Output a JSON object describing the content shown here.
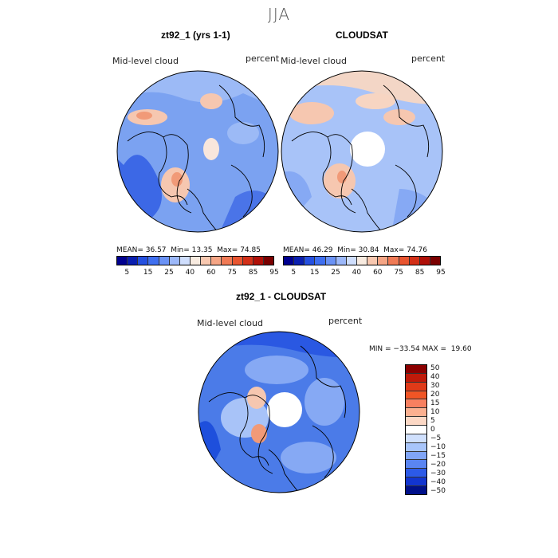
{
  "season": "JJA",
  "panel1": {
    "title": "zt92_1 (yrs 1-1)",
    "field": "Mid-level cloud",
    "units": "percent",
    "mean_label": "MEAN=",
    "mean": "36.57",
    "min_label": "Min=",
    "min": "13.35",
    "max_label": "Max=",
    "max": "74.85"
  },
  "panel2": {
    "title": "CLOUDSAT",
    "field": "Mid-level cloud",
    "units": "percent",
    "mean_label": "MEAN=",
    "mean": "46.29",
    "min_label": "Min=",
    "min": "30.84",
    "max_label": "Max=",
    "max": "74.76"
  },
  "panel3": {
    "title": "zt92_1 - CLOUDSAT",
    "field": "Mid-level cloud",
    "units": "percent",
    "minmax": "MIN = −33.54 MAX =  19.60"
  },
  "colorbar_abs": {
    "colors": [
      "#00008f",
      "#0a1fb0",
      "#2550e0",
      "#3f6ff0",
      "#6a92f5",
      "#9cb8fa",
      "#cfdefd",
      "#f8ebe0",
      "#f8c8b0",
      "#f5a585",
      "#f07a55",
      "#e85530",
      "#d33018",
      "#b01008",
      "#7a0000"
    ],
    "tick_labels": [
      "5",
      "15",
      "25",
      "40",
      "60",
      "75",
      "85",
      "95"
    ]
  },
  "colorbar_diff": {
    "colors": [
      "#8b0000",
      "#c01a0a",
      "#e03a18",
      "#f05525",
      "#f88060",
      "#fbb090",
      "#fcd8c5",
      "#ffffff",
      "#d0e0fd",
      "#a8c5fb",
      "#80a5f7",
      "#5a85f2",
      "#2c5ae8",
      "#1235d0",
      "#00108a"
    ],
    "tick_labels": [
      "50",
      "40",
      "30",
      "20",
      "15",
      "10",
      "5",
      "0",
      "−5",
      "−10",
      "−15",
      "−20",
      "−30",
      "−40",
      "−50"
    ]
  },
  "colors": {
    "map_base_abs": "#7aa3f2",
    "map_base_diff": "#4f7fe8",
    "warm": "#f7c9b0",
    "coast": "#000000"
  }
}
